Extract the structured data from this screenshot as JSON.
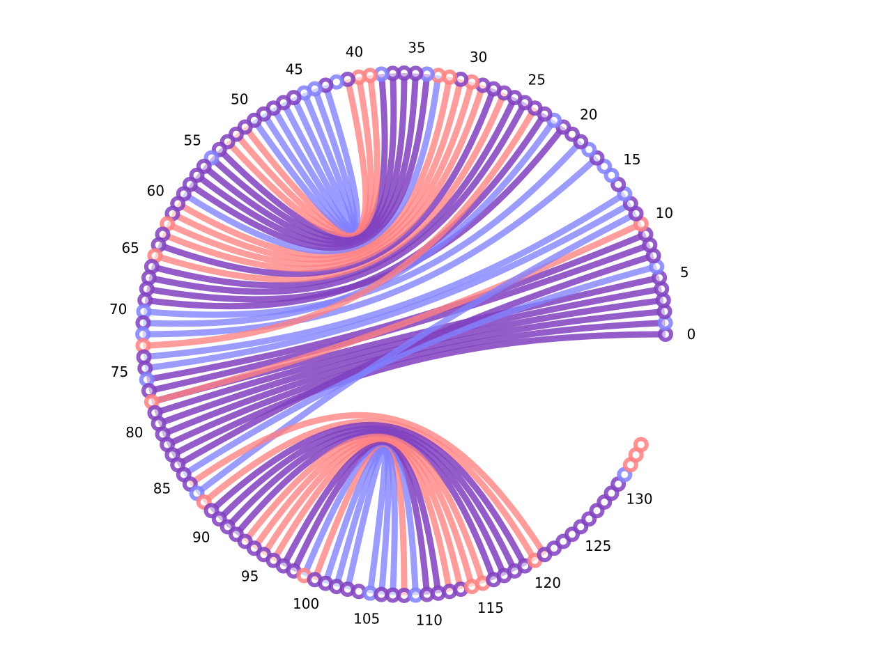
{
  "diagram": {
    "type": "arc",
    "node_count": 135,
    "colors": {
      "red": "#ff8080",
      "blue": "#8080ff",
      "purple": "#8040c0"
    },
    "tick_labels": [
      "0",
      "5",
      "10",
      "15",
      "20",
      "25",
      "30",
      "35",
      "40",
      "45",
      "50",
      "55",
      "60",
      "65",
      "70",
      "75",
      "80",
      "85",
      "90",
      "95",
      "100",
      "105",
      "110",
      "115",
      "120",
      "125",
      "130"
    ],
    "node_colors": [
      "purple",
      "blue",
      "purple",
      "purple",
      "purple",
      "purple",
      "blue",
      "purple",
      "purple",
      "purple",
      "red",
      "purple",
      "purple",
      "blue",
      "purple",
      "blue",
      "blue",
      "purple",
      "blue",
      "purple",
      "purple",
      "purple",
      "blue",
      "purple",
      "purple",
      "purple",
      "purple",
      "purple",
      "purple",
      "purple",
      "red",
      "purple",
      "red",
      "red",
      "blue",
      "purple",
      "purple",
      "purple",
      "blue",
      "red",
      "red",
      "purple",
      "blue",
      "purple",
      "blue",
      "blue",
      "purple",
      "purple",
      "purple",
      "purple",
      "purple",
      "purple",
      "purple",
      "purple",
      "purple",
      "blue",
      "purple",
      "purple",
      "purple",
      "purple",
      "purple",
      "purple",
      "red",
      "purple",
      "purple",
      "red",
      "purple",
      "purple",
      "purple",
      "purple",
      "blue",
      "purple",
      "blue",
      "red",
      "purple",
      "purple",
      "blue",
      "purple",
      "red",
      "purple",
      "purple",
      "purple",
      "purple",
      "purple",
      "purple",
      "purple",
      "purple",
      "blue",
      "red",
      "purple",
      "purple",
      "purple",
      "purple",
      "purple",
      "purple",
      "purple",
      "purple",
      "purple",
      "purple",
      "red",
      "purple",
      "purple",
      "purple",
      "purple",
      "purple",
      "blue",
      "purple",
      "purple",
      "purple",
      "blue",
      "purple",
      "purple",
      "purple",
      "purple",
      "red",
      "red",
      "purple",
      "purple",
      "purple",
      "purple",
      "red",
      "purple",
      "purple",
      "purple",
      "purple",
      "purple",
      "purple",
      "purple",
      "purple",
      "purple",
      "purple",
      "blue",
      "red",
      "red",
      "red"
    ],
    "edges": [
      {
        "source": 0,
        "target": 83,
        "color": "purple"
      },
      {
        "source": 1,
        "target": 82,
        "color": "purple"
      },
      {
        "source": 2,
        "target": 81,
        "color": "purple"
      },
      {
        "source": 3,
        "target": 80,
        "color": "purple"
      },
      {
        "source": 4,
        "target": 79,
        "color": "purple"
      },
      {
        "source": 5,
        "target": 78,
        "color": "purple"
      },
      {
        "source": 6,
        "target": 85,
        "color": "blue"
      },
      {
        "source": 7,
        "target": 84,
        "color": "purple"
      },
      {
        "source": 8,
        "target": 77,
        "color": "purple"
      },
      {
        "source": 9,
        "target": 76,
        "color": "purple"
      },
      {
        "source": 10,
        "target": 78,
        "color": "red"
      },
      {
        "source": 11,
        "target": 87,
        "color": "blue"
      },
      {
        "source": 12,
        "target": 75,
        "color": "blue"
      },
      {
        "source": 13,
        "target": 74,
        "color": "blue"
      },
      {
        "source": 17,
        "target": 72,
        "color": "blue"
      },
      {
        "source": 19,
        "target": 70,
        "color": "blue"
      },
      {
        "source": 21,
        "target": 68,
        "color": "purple"
      },
      {
        "source": 22,
        "target": 71,
        "color": "blue"
      },
      {
        "source": 23,
        "target": 69,
        "color": "purple"
      },
      {
        "source": 24,
        "target": 73,
        "color": "red"
      },
      {
        "source": 25,
        "target": 67,
        "color": "purple"
      },
      {
        "source": 26,
        "target": 66,
        "color": "purple"
      },
      {
        "source": 27,
        "target": 65,
        "color": "red"
      },
      {
        "source": 28,
        "target": 64,
        "color": "purple"
      },
      {
        "source": 29,
        "target": 63,
        "color": "red"
      },
      {
        "source": 30,
        "target": 62,
        "color": "red"
      },
      {
        "source": 31,
        "target": 61,
        "color": "red"
      },
      {
        "source": 32,
        "target": 60,
        "color": "red"
      },
      {
        "source": 33,
        "target": 59,
        "color": "blue"
      },
      {
        "source": 34,
        "target": 58,
        "color": "purple"
      },
      {
        "source": 35,
        "target": 57,
        "color": "purple"
      },
      {
        "source": 36,
        "target": 56,
        "color": "purple"
      },
      {
        "source": 37,
        "target": 55,
        "color": "purple"
      },
      {
        "source": 38,
        "target": 54,
        "color": "purple"
      },
      {
        "source": 39,
        "target": 53,
        "color": "red"
      },
      {
        "source": 40,
        "target": 52,
        "color": "red"
      },
      {
        "source": 41,
        "target": 51,
        "color": "red"
      },
      {
        "source": 43,
        "target": 50,
        "color": "blue"
      },
      {
        "source": 44,
        "target": 49,
        "color": "blue"
      },
      {
        "source": 45,
        "target": 48,
        "color": "blue"
      },
      {
        "source": 46,
        "target": 47,
        "color": "blue"
      },
      {
        "source": 86,
        "target": 121,
        "color": "red"
      },
      {
        "source": 88,
        "target": 120,
        "color": "red"
      },
      {
        "source": 89,
        "target": 119,
        "color": "purple"
      },
      {
        "source": 90,
        "target": 118,
        "color": "purple"
      },
      {
        "source": 91,
        "target": 117,
        "color": "purple"
      },
      {
        "source": 92,
        "target": 116,
        "color": "purple"
      },
      {
        "source": 93,
        "target": 115,
        "color": "red"
      },
      {
        "source": 94,
        "target": 114,
        "color": "red"
      },
      {
        "source": 95,
        "target": 113,
        "color": "red"
      },
      {
        "source": 96,
        "target": 112,
        "color": "red"
      },
      {
        "source": 97,
        "target": 111,
        "color": "purple"
      },
      {
        "source": 98,
        "target": 110,
        "color": "purple"
      },
      {
        "source": 99,
        "target": 109,
        "color": "blue"
      },
      {
        "source": 100,
        "target": 108,
        "color": "red"
      },
      {
        "source": 101,
        "target": 107,
        "color": "blue"
      },
      {
        "source": 102,
        "target": 106,
        "color": "blue"
      },
      {
        "source": 103,
        "target": 105,
        "color": "blue"
      }
    ]
  }
}
